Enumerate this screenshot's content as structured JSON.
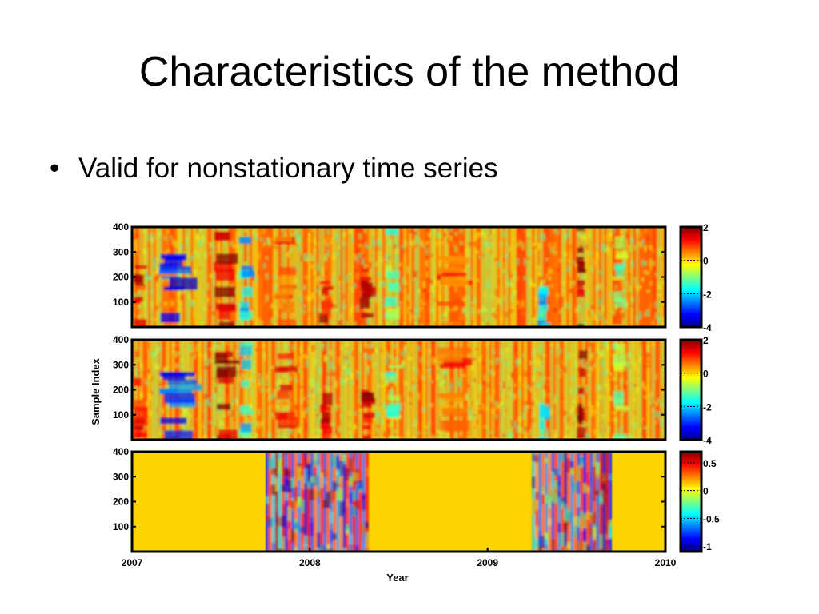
{
  "slide": {
    "title": "Characteristics of the method",
    "bullet_glyph": "•",
    "bullet_text": "Valid for nonstationary time series"
  },
  "chart_data": {
    "type": "heatmap",
    "xlabel": "Year",
    "ylabel": "Sample Index",
    "x_ticks": [
      "2007",
      "2008",
      "2009",
      "2010"
    ],
    "x_range": [
      2007,
      2010
    ],
    "y_ticks": [
      100,
      200,
      300,
      400
    ],
    "y_range": [
      0,
      400
    ],
    "colormap": "jet",
    "panels": [
      {
        "name": "panel-1",
        "colorbar_ticks": [
          "2",
          "0",
          "-2",
          "-4"
        ],
        "clim": [
          -4,
          2
        ],
        "background_value": 0.5,
        "bands": [
          {
            "x_start": 2007.0,
            "x_end": 2007.08,
            "value": 1.2,
            "y_max": 250
          },
          {
            "x_start": 2007.15,
            "x_end": 2007.35,
            "value": -3.0,
            "y_max": 300
          },
          {
            "x_start": 2007.45,
            "x_end": 2007.58,
            "value": 1.8,
            "y_max": 400
          },
          {
            "x_start": 2007.6,
            "x_end": 2007.68,
            "value": -2.0,
            "y_max": 400
          },
          {
            "x_start": 2007.8,
            "x_end": 2007.92,
            "value": 0.9,
            "y_max": 400
          },
          {
            "x_start": 2008.05,
            "x_end": 2008.12,
            "value": 1.4,
            "y_max": 200
          },
          {
            "x_start": 2008.28,
            "x_end": 2008.36,
            "value": 1.6,
            "y_max": 250
          },
          {
            "x_start": 2008.42,
            "x_end": 2008.5,
            "value": -1.2,
            "y_max": 400
          },
          {
            "x_start": 2008.7,
            "x_end": 2008.9,
            "value": 0.8,
            "y_max": 400
          },
          {
            "x_start": 2009.28,
            "x_end": 2009.34,
            "value": -2.0,
            "y_max": 180
          },
          {
            "x_start": 2009.5,
            "x_end": 2009.55,
            "value": 1.9,
            "y_max": 400
          },
          {
            "x_start": 2009.7,
            "x_end": 2009.78,
            "value": -1.0,
            "y_max": 400
          }
        ]
      },
      {
        "name": "panel-2",
        "colorbar_ticks": [
          "2",
          "0",
          "-2",
          "-4"
        ],
        "clim": [
          -4,
          2
        ],
        "background_value": 0.5,
        "bands": [
          {
            "x_start": 2007.0,
            "x_end": 2007.08,
            "value": 1.2,
            "y_max": 250
          },
          {
            "x_start": 2007.15,
            "x_end": 2007.35,
            "value": -2.8,
            "y_max": 300
          },
          {
            "x_start": 2007.45,
            "x_end": 2007.58,
            "value": 1.8,
            "y_max": 400
          },
          {
            "x_start": 2007.6,
            "x_end": 2007.68,
            "value": -1.8,
            "y_max": 400
          },
          {
            "x_start": 2007.8,
            "x_end": 2007.92,
            "value": 0.9,
            "y_max": 400
          },
          {
            "x_start": 2008.05,
            "x_end": 2008.12,
            "value": 1.3,
            "y_max": 200
          },
          {
            "x_start": 2008.28,
            "x_end": 2008.36,
            "value": 1.5,
            "y_max": 250
          },
          {
            "x_start": 2008.42,
            "x_end": 2008.5,
            "value": -1.0,
            "y_max": 400
          },
          {
            "x_start": 2008.7,
            "x_end": 2008.9,
            "value": 0.8,
            "y_max": 400
          },
          {
            "x_start": 2009.28,
            "x_end": 2009.34,
            "value": -1.8,
            "y_max": 180
          },
          {
            "x_start": 2009.5,
            "x_end": 2009.55,
            "value": 1.8,
            "y_max": 400
          },
          {
            "x_start": 2009.7,
            "x_end": 2009.78,
            "value": -0.9,
            "y_max": 400
          }
        ]
      },
      {
        "name": "panel-3",
        "colorbar_ticks": [
          "0.5",
          "0",
          "-0.5",
          "-1"
        ],
        "clim": [
          -1.1,
          0.7
        ],
        "background_value": 0.1,
        "active_ranges": [
          [
            2007.75,
            2008.33
          ],
          [
            2009.25,
            2009.7
          ]
        ]
      }
    ]
  }
}
